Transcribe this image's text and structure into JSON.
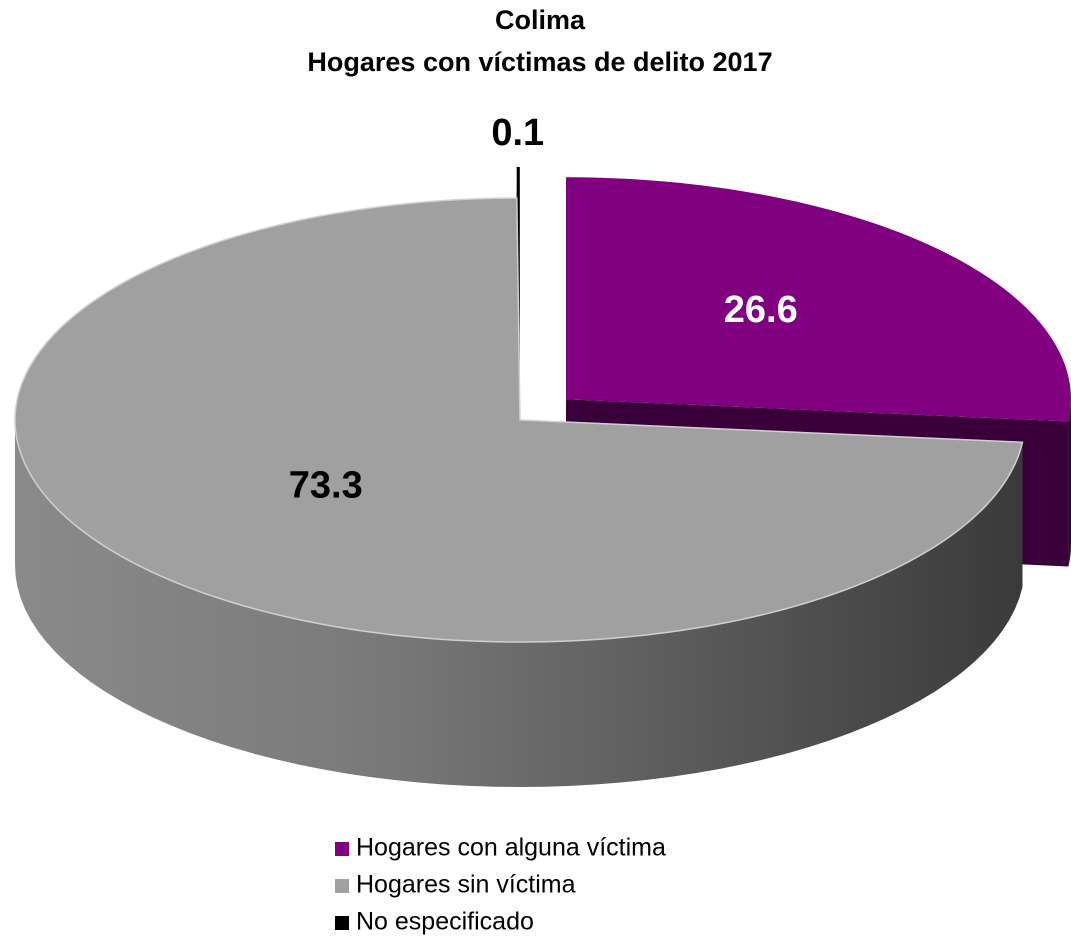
{
  "chart_data": {
    "type": "pie3d",
    "title": "Colima",
    "subtitle": "Hogares con víctimas de delito 2017",
    "categories": [
      "Hogares con alguna víctima",
      "Hogares sin víctima",
      "No especificado"
    ],
    "values": [
      26.6,
      73.3,
      0.1
    ],
    "colors": [
      "#800080",
      "#a0a0a0",
      "#000000"
    ],
    "legend": "bottom"
  }
}
